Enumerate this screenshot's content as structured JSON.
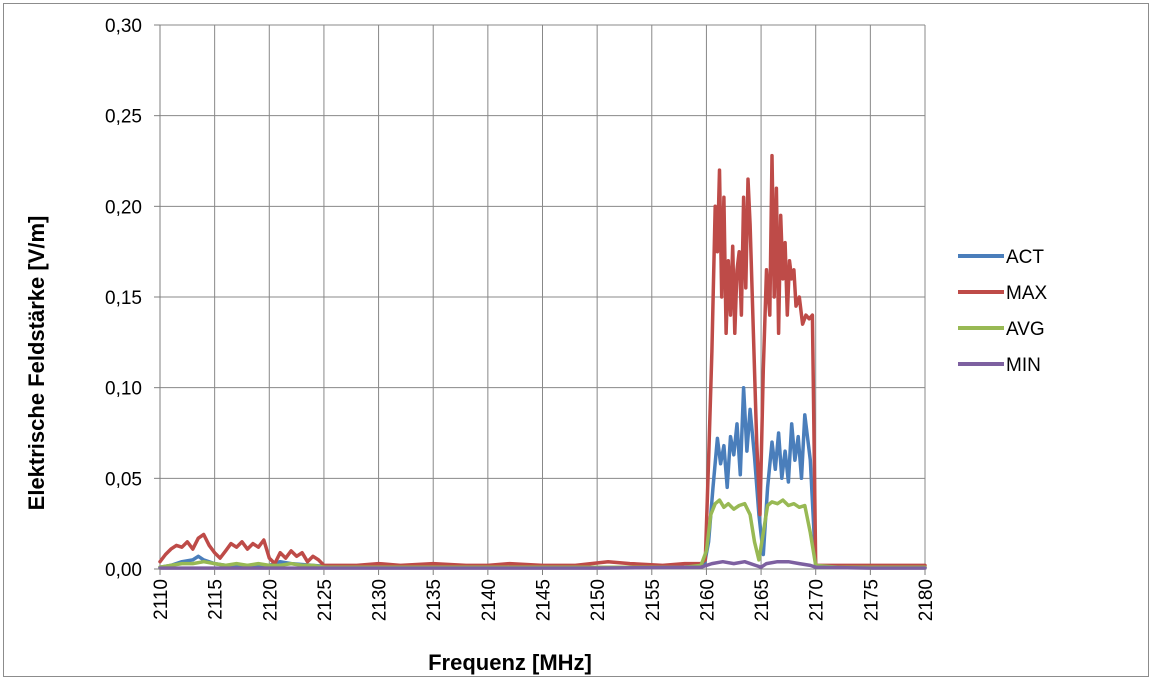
{
  "chart_data": {
    "type": "line",
    "title": "",
    "xlabel": "Frequenz [MHz]",
    "ylabel": "Elektrische Feldstärke [V/m]",
    "xlim": [
      2110,
      2180
    ],
    "ylim": [
      0,
      0.3
    ],
    "x_ticks": [
      2110,
      2115,
      2120,
      2125,
      2130,
      2135,
      2140,
      2145,
      2150,
      2155,
      2160,
      2165,
      2170,
      2175,
      2180
    ],
    "x_tick_labels": [
      "2110",
      "2115",
      "2120",
      "2125",
      "2130",
      "2135",
      "2140",
      "2145",
      "2150",
      "2155",
      "2160",
      "2165",
      "2170",
      "2175",
      "2180"
    ],
    "y_ticks": [
      0,
      0.05,
      0.1,
      0.15,
      0.2,
      0.25,
      0.3
    ],
    "y_tick_labels": [
      "0,00",
      "0,05",
      "0,10",
      "0,15",
      "0,20",
      "0,25",
      "0,30"
    ],
    "grid": true,
    "legend_position": "right",
    "series": [
      {
        "name": "ACT",
        "color": "#4a7ebb",
        "x": [
          2110,
          2111,
          2112,
          2113,
          2113.5,
          2114,
          2115,
          2116,
          2118,
          2120,
          2121,
          2122,
          2124,
          2126,
          2130,
          2140,
          2150,
          2158,
          2159.8,
          2160.2,
          2160.6,
          2161,
          2161.3,
          2161.6,
          2161.9,
          2162.2,
          2162.5,
          2162.8,
          2163.1,
          2163.4,
          2163.7,
          2164,
          2164.4,
          2164.8,
          2165.2,
          2165.6,
          2166,
          2166.3,
          2166.6,
          2166.9,
          2167.2,
          2167.5,
          2167.8,
          2168.1,
          2168.4,
          2168.7,
          2169,
          2169.5,
          2170,
          2172,
          2175,
          2180
        ],
        "y": [
          0.001,
          0.002,
          0.004,
          0.005,
          0.007,
          0.005,
          0.003,
          0.002,
          0.002,
          0.002,
          0.004,
          0.003,
          0.002,
          0.001,
          0.001,
          0.001,
          0.001,
          0.001,
          0.002,
          0.015,
          0.045,
          0.072,
          0.058,
          0.068,
          0.045,
          0.073,
          0.063,
          0.08,
          0.052,
          0.1,
          0.065,
          0.088,
          0.062,
          0.03,
          0.008,
          0.045,
          0.07,
          0.055,
          0.075,
          0.05,
          0.065,
          0.048,
          0.08,
          0.06,
          0.073,
          0.05,
          0.085,
          0.06,
          0.002,
          0.001,
          0.001,
          0.001
        ]
      },
      {
        "name": "MAX",
        "color": "#be4b48",
        "x": [
          2110,
          2110.5,
          2111,
          2111.5,
          2112,
          2112.5,
          2113,
          2113.5,
          2114,
          2114.5,
          2115,
          2115.5,
          2116,
          2116.5,
          2117,
          2117.5,
          2118,
          2118.5,
          2119,
          2119.5,
          2120,
          2120.5,
          2121,
          2121.5,
          2122,
          2122.5,
          2123,
          2123.5,
          2124,
          2124.5,
          2125,
          2126,
          2128,
          2130,
          2132,
          2135,
          2138,
          2140,
          2142,
          2145,
          2148,
          2151,
          2153,
          2156,
          2158,
          2159.5,
          2159.9,
          2160.2,
          2160.5,
          2160.8,
          2161,
          2161.2,
          2161.4,
          2161.6,
          2161.8,
          2162,
          2162.2,
          2162.4,
          2162.6,
          2162.8,
          2163,
          2163.2,
          2163.4,
          2163.6,
          2163.8,
          2164,
          2164.3,
          2164.6,
          2164.9,
          2165.2,
          2165.5,
          2165.8,
          2166,
          2166.2,
          2166.4,
          2166.6,
          2166.8,
          2167,
          2167.2,
          2167.4,
          2167.6,
          2167.8,
          2168,
          2168.2,
          2168.5,
          2168.8,
          2169.1,
          2169.4,
          2169.7,
          2170,
          2171,
          2174,
          2177,
          2180
        ],
        "y": [
          0.004,
          0.008,
          0.011,
          0.013,
          0.012,
          0.015,
          0.011,
          0.017,
          0.019,
          0.013,
          0.009,
          0.006,
          0.01,
          0.014,
          0.012,
          0.015,
          0.011,
          0.014,
          0.012,
          0.016,
          0.006,
          0.003,
          0.009,
          0.006,
          0.01,
          0.007,
          0.009,
          0.004,
          0.007,
          0.005,
          0.002,
          0.002,
          0.002,
          0.003,
          0.002,
          0.003,
          0.002,
          0.002,
          0.003,
          0.002,
          0.002,
          0.004,
          0.003,
          0.002,
          0.003,
          0.003,
          0.005,
          0.06,
          0.12,
          0.2,
          0.175,
          0.22,
          0.15,
          0.205,
          0.13,
          0.17,
          0.14,
          0.178,
          0.13,
          0.165,
          0.175,
          0.14,
          0.205,
          0.155,
          0.215,
          0.19,
          0.13,
          0.07,
          0.03,
          0.11,
          0.165,
          0.14,
          0.228,
          0.15,
          0.21,
          0.13,
          0.195,
          0.16,
          0.18,
          0.14,
          0.17,
          0.16,
          0.165,
          0.145,
          0.15,
          0.135,
          0.14,
          0.138,
          0.14,
          0.002,
          0.002,
          0.002,
          0.002,
          0.002
        ]
      },
      {
        "name": "AVG",
        "color": "#98b954",
        "x": [
          2110,
          2111,
          2112,
          2113,
          2114,
          2115,
          2116,
          2117,
          2118,
          2119,
          2120,
          2121,
          2122,
          2123,
          2124,
          2125,
          2130,
          2140,
          2150,
          2158,
          2159.5,
          2160,
          2160.4,
          2160.8,
          2161.2,
          2161.6,
          2162,
          2162.5,
          2163,
          2163.5,
          2164,
          2164.4,
          2164.8,
          2165.2,
          2165.6,
          2166,
          2166.5,
          2167,
          2167.5,
          2168,
          2168.5,
          2169,
          2169.5,
          2170,
          2172,
          2175,
          2180
        ],
        "y": [
          0.001,
          0.002,
          0.003,
          0.003,
          0.004,
          0.003,
          0.002,
          0.003,
          0.002,
          0.003,
          0.002,
          0.002,
          0.003,
          0.002,
          0.002,
          0.001,
          0.001,
          0.001,
          0.001,
          0.001,
          0.002,
          0.01,
          0.03,
          0.036,
          0.038,
          0.034,
          0.036,
          0.033,
          0.035,
          0.036,
          0.03,
          0.015,
          0.005,
          0.02,
          0.035,
          0.037,
          0.036,
          0.038,
          0.035,
          0.036,
          0.034,
          0.035,
          0.02,
          0.002,
          0.001,
          0.001,
          0.001
        ]
      },
      {
        "name": "MIN",
        "color": "#7d60a0",
        "x": [
          2110,
          2120,
          2130,
          2140,
          2150,
          2159.5,
          2160.5,
          2161.5,
          2162.5,
          2163.5,
          2164.5,
          2165,
          2165.5,
          2166.5,
          2167.5,
          2168.5,
          2169.5,
          2170,
          2175,
          2180
        ],
        "y": [
          0.0005,
          0.0005,
          0.0005,
          0.0005,
          0.0005,
          0.001,
          0.003,
          0.004,
          0.003,
          0.004,
          0.002,
          0.001,
          0.003,
          0.004,
          0.004,
          0.003,
          0.002,
          0.001,
          0.0005,
          0.0005
        ]
      }
    ]
  }
}
